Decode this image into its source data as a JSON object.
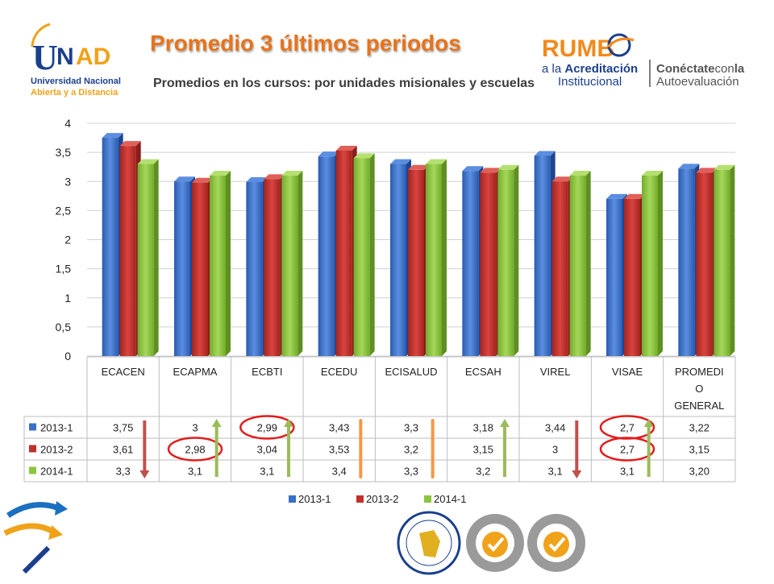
{
  "header": {
    "title": "Promedio 3 últimos periodos",
    "subtitle": "Promedios en los cursos: por unidades misionales y escuelas"
  },
  "logos": {
    "unad_name": "UNAD",
    "unad_line1": "Universidad Nacional",
    "unad_line2": "Abierta y a Distancia",
    "rumbo_word": "RUMB",
    "rumbo_line1_a": "a la ",
    "rumbo_line1_b": "Acreditación",
    "rumbo_line2": "Institucional",
    "conectate_a": "Conéctate",
    "conectate_b": "con",
    "conectate_c": "la",
    "conectate_line2": "Autoevaluación"
  },
  "colors": {
    "series_2013_1": "#3a6fc8",
    "series_2013_2": "#c0302b",
    "series_2014_1": "#8cc63f",
    "title_orange": "#e8731a",
    "arrow_red": "#c0504d",
    "arrow_green": "#9bbb59",
    "arrow_orange": "#f79646",
    "circle_red": "#e31b1b"
  },
  "chart_data": {
    "type": "bar",
    "categories": [
      "ECACEN",
      "ECAPMA",
      "ECBTI",
      "ECEDU",
      "ECISALUD",
      "ECSAH",
      "VIREL",
      "VISAE",
      "PROMEDI O GENERAL"
    ],
    "category_lines": [
      [
        "ECACEN"
      ],
      [
        "ECAPMA"
      ],
      [
        "ECBTI"
      ],
      [
        "ECEDU"
      ],
      [
        "ECISALUD"
      ],
      [
        "ECSAH"
      ],
      [
        "VIREL"
      ],
      [
        "VISAE"
      ],
      [
        "PROMEDI",
        "O",
        "GENERAL"
      ]
    ],
    "series": [
      {
        "name": "2013-1",
        "values": [
          3.75,
          3,
          2.99,
          3.43,
          3.3,
          3.18,
          3.44,
          2.7,
          3.22
        ],
        "labels": [
          "3,75",
          "3",
          "2,99",
          "3,43",
          "3,3",
          "3,18",
          "3,44",
          "2,7",
          "3,22"
        ]
      },
      {
        "name": "2013-2",
        "values": [
          3.61,
          2.98,
          3.04,
          3.53,
          3.2,
          3.15,
          3,
          2.7,
          3.15
        ],
        "labels": [
          "3,61",
          "2,98",
          "3,04",
          "3,53",
          "3,2",
          "3,15",
          "3",
          "2,7",
          "3,15"
        ]
      },
      {
        "name": "2014-1",
        "values": [
          3.3,
          3.1,
          3.1,
          3.4,
          3.3,
          3.2,
          3.1,
          3.1,
          3.2
        ],
        "labels": [
          "3,3",
          "3,1",
          "3,1",
          "3,4",
          "3,3",
          "3,2",
          "3,1",
          "3,1",
          "3,20"
        ]
      }
    ],
    "ylim": [
      0,
      4
    ],
    "yticks": [
      0,
      0.5,
      1,
      1.5,
      2,
      2.5,
      3,
      3.5,
      4
    ],
    "ytick_labels": [
      "0",
      "0,5",
      "1",
      "1,5",
      "2",
      "2,5",
      "3",
      "3,5",
      "4"
    ],
    "grid": true,
    "legend": "bottom",
    "legend_entries": [
      "2013-1",
      "2013-2",
      "2014-1"
    ],
    "data_table": true,
    "annotations": [
      {
        "kind": "circle",
        "series": 1,
        "category": 1
      },
      {
        "kind": "circle",
        "series": 0,
        "category": 2
      },
      {
        "kind": "circle",
        "series": 0,
        "category": 7
      },
      {
        "kind": "circle",
        "series": 1,
        "category": 7
      },
      {
        "kind": "arrow",
        "direction": "down",
        "color": "red",
        "category": 0
      },
      {
        "kind": "arrow",
        "direction": "up",
        "color": "green",
        "category": 1
      },
      {
        "kind": "arrow",
        "direction": "up",
        "color": "green",
        "category": 2
      },
      {
        "kind": "bar",
        "color": "orange",
        "category": 3
      },
      {
        "kind": "bar",
        "color": "orange",
        "category": 4
      },
      {
        "kind": "arrow",
        "direction": "up",
        "color": "green",
        "category": 5
      },
      {
        "kind": "arrow",
        "direction": "down",
        "color": "red",
        "category": 6
      },
      {
        "kind": "arrow",
        "direction": "up",
        "color": "green",
        "category": 7
      }
    ]
  }
}
